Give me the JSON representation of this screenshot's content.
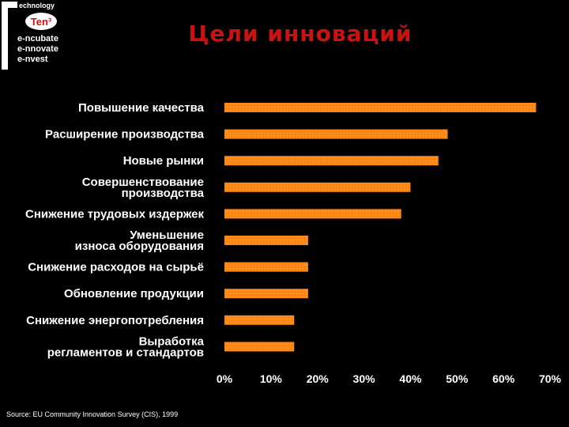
{
  "logo": {
    "line1": "echnology",
    "badge": "Ten³",
    "line2": "e-ncubate",
    "line3": "e-nnovate",
    "line4": "e-nvest"
  },
  "title": "Цели инноваций",
  "source": "Source: EU Community Innovation Survey (CIS), 1999",
  "colors": {
    "background": "#000000",
    "bar": "#ff8c1a",
    "title": "#cc1111",
    "text": "#ffffff"
  },
  "chart_data": {
    "type": "bar",
    "orientation": "horizontal",
    "categories": [
      [
        "Повышение качества"
      ],
      [
        "Расширение производства"
      ],
      [
        "Новые рынки"
      ],
      [
        "Совершенствование",
        "производства"
      ],
      [
        "Снижение трудовых издержек"
      ],
      [
        "Уменьшение",
        "износа оборудования"
      ],
      [
        "Снижение расходов на сырьё"
      ],
      [
        "Обновление продукции"
      ],
      [
        "Снижение энергопотребления"
      ],
      [
        "Выработка",
        "регламентов и стандартов"
      ]
    ],
    "values": [
      67,
      48,
      46,
      40,
      38,
      18,
      18,
      18,
      15,
      15
    ],
    "xlim": [
      0,
      70
    ],
    "xticks": [
      0,
      10,
      20,
      30,
      40,
      50,
      60,
      70
    ],
    "tick_suffix": "%",
    "grid": false
  }
}
